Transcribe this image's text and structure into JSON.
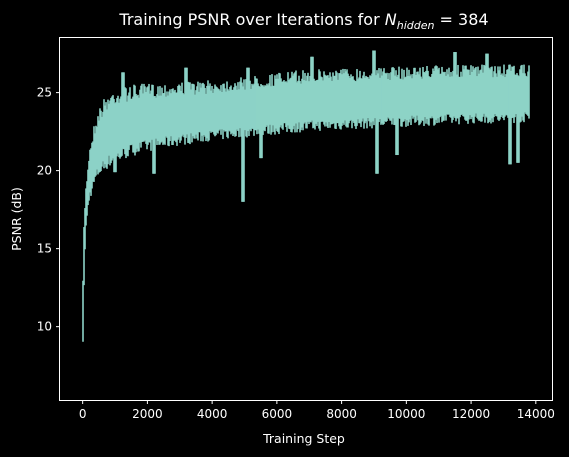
{
  "chart_data": {
    "type": "line",
    "title": {
      "prefix": "Training PSNR over Iterations for ",
      "symbol": "N",
      "subscript": "hidden",
      "suffix": " = 384"
    },
    "xlabel": "Training Step",
    "ylabel": "PSNR (dB)",
    "xlim": [
      -700,
      14500
    ],
    "ylim": [
      5.3,
      28.5
    ],
    "xticks": [
      0,
      2000,
      4000,
      6000,
      8000,
      10000,
      12000,
      14000
    ],
    "yticks": [
      10,
      15,
      20,
      25
    ],
    "grid": false,
    "legend": "none",
    "colors": {
      "background": "#000000",
      "line": "#8dd3c7",
      "axes": "#ffffff"
    },
    "series": [
      {
        "x_range": [
          0,
          13800
        ],
        "points_x": [
          0,
          20,
          50,
          100,
          150,
          200,
          300,
          400,
          500,
          700,
          1000,
          1500,
          2000,
          3000,
          4000,
          5000,
          6000,
          7000,
          8000,
          9000,
          10000,
          11000,
          12000,
          13000,
          13800
        ],
        "upper": [
          11.2,
          14.5,
          17.5,
          19.0,
          20.2,
          21.3,
          22.5,
          23.4,
          24.0,
          24.8,
          25.3,
          25.5,
          25.6,
          25.7,
          25.8,
          26.0,
          26.3,
          26.5,
          26.6,
          26.6,
          26.7,
          26.8,
          26.8,
          26.8,
          26.8
        ],
        "lower": [
          6.3,
          10.0,
          13.5,
          16.0,
          17.2,
          18.0,
          18.6,
          19.2,
          19.6,
          20.0,
          20.4,
          20.9,
          21.2,
          21.6,
          21.9,
          22.1,
          22.3,
          22.5,
          22.6,
          22.7,
          22.8,
          22.9,
          23.0,
          23.0,
          23.1
        ],
        "dips": [
          {
            "x": 1000,
            "y": 19.9
          },
          {
            "x": 2200,
            "y": 19.8
          },
          {
            "x": 4950,
            "y": 18.0
          },
          {
            "x": 5500,
            "y": 20.8
          },
          {
            "x": 9100,
            "y": 19.8
          },
          {
            "x": 9700,
            "y": 21.0
          },
          {
            "x": 13200,
            "y": 20.4
          },
          {
            "x": 13450,
            "y": 20.5
          }
        ],
        "spikes": [
          {
            "x": 1250,
            "y": 26.3
          },
          {
            "x": 3200,
            "y": 26.6
          },
          {
            "x": 5100,
            "y": 26.6
          },
          {
            "x": 7100,
            "y": 27.3
          },
          {
            "x": 9000,
            "y": 27.7
          },
          {
            "x": 11500,
            "y": 27.6
          },
          {
            "x": 12500,
            "y": 27.5
          }
        ]
      }
    ]
  }
}
